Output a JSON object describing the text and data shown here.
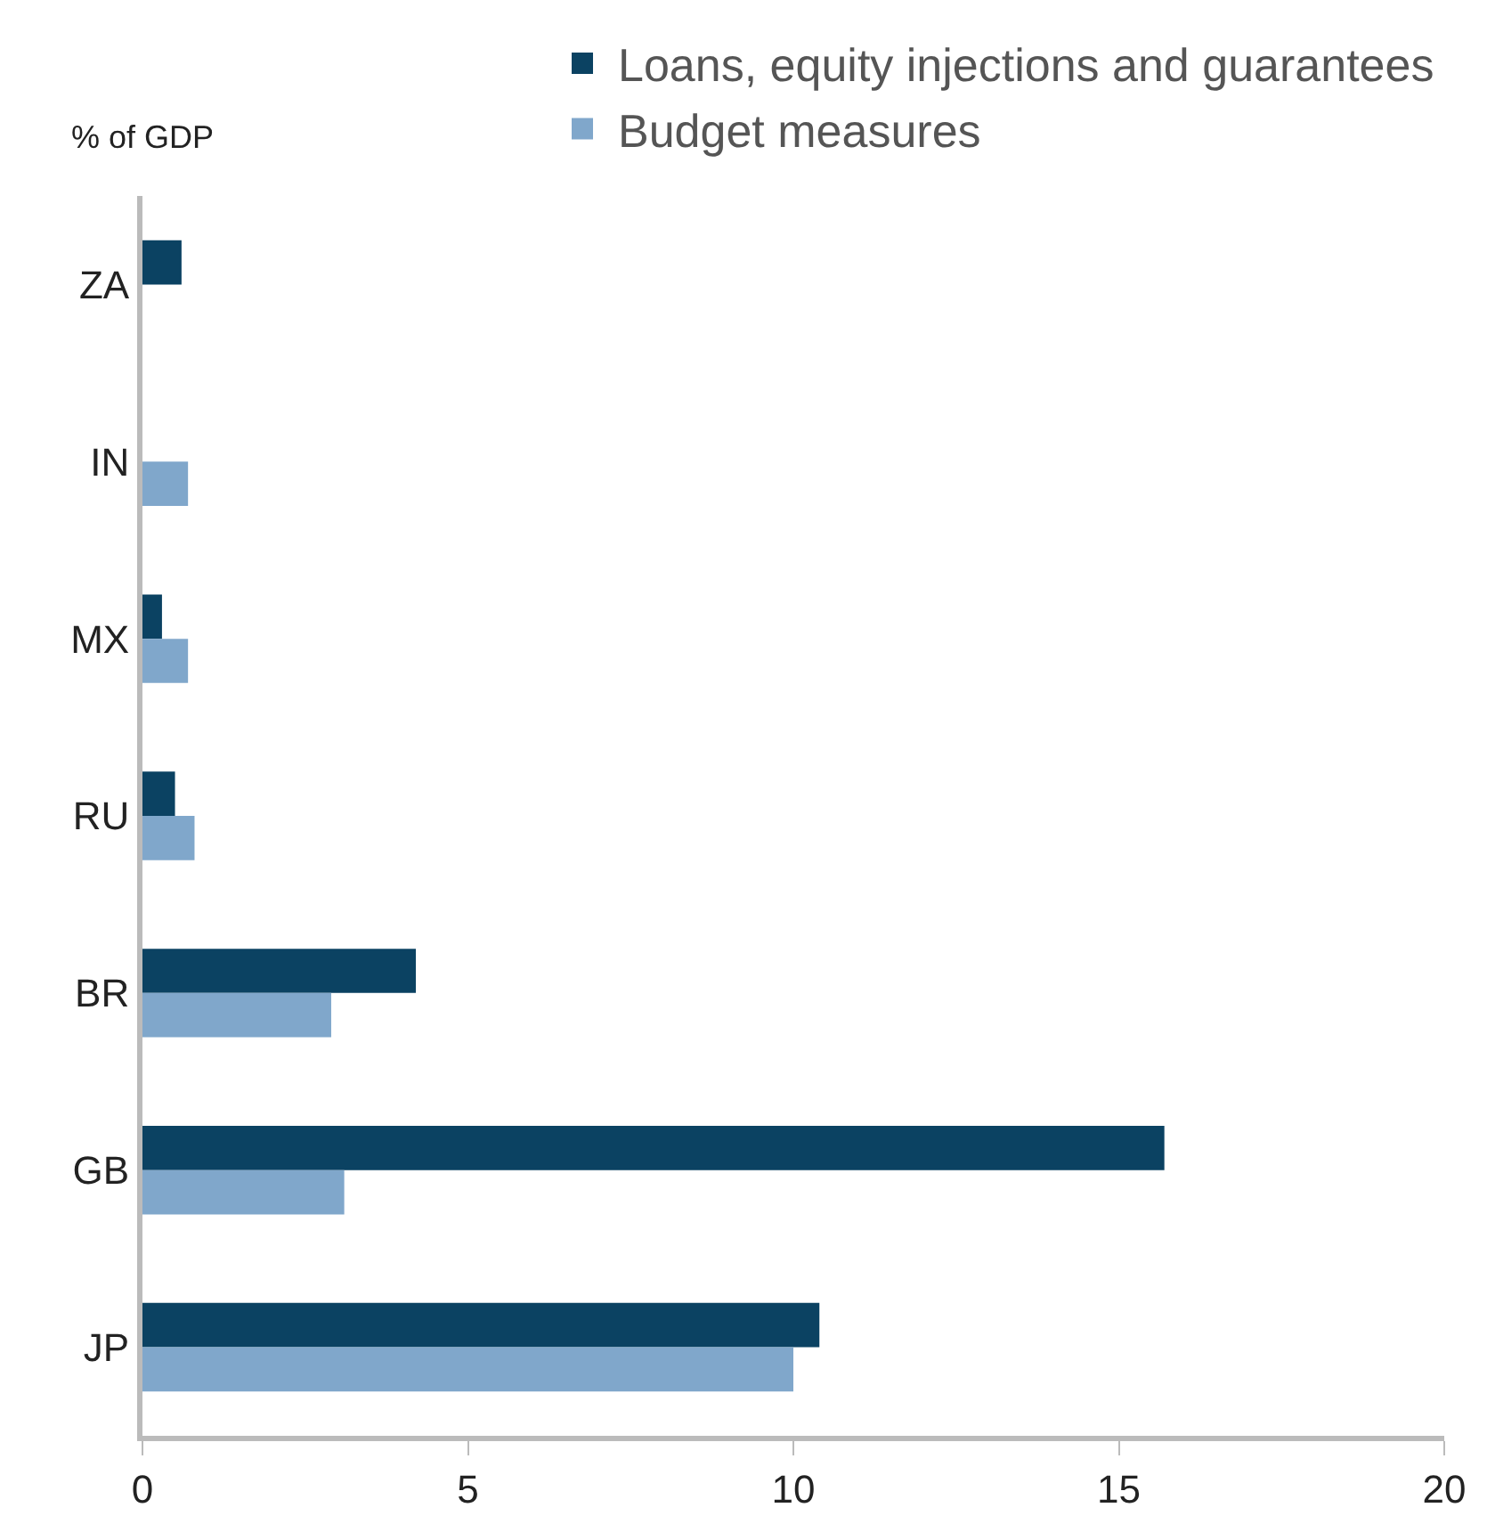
{
  "chart_data": {
    "type": "bar",
    "orientation": "horizontal",
    "ylabel": "% of GDP",
    "categories": [
      "ZA",
      "IN",
      "MX",
      "RU",
      "BR",
      "GB",
      "JP"
    ],
    "series": [
      {
        "name": "Loans, equity injections and guarantees",
        "color": "#0b4262",
        "values": [
          0.6,
          null,
          0.3,
          0.5,
          4.2,
          15.7,
          10.4
        ]
      },
      {
        "name": "Budget measures",
        "color": "#80a7cb",
        "values": [
          null,
          0.7,
          0.7,
          0.8,
          2.9,
          3.1,
          10.0
        ]
      }
    ],
    "xlim": [
      0,
      20
    ],
    "xticks": [
      0,
      5,
      10,
      15,
      20
    ],
    "legend": "top right"
  }
}
